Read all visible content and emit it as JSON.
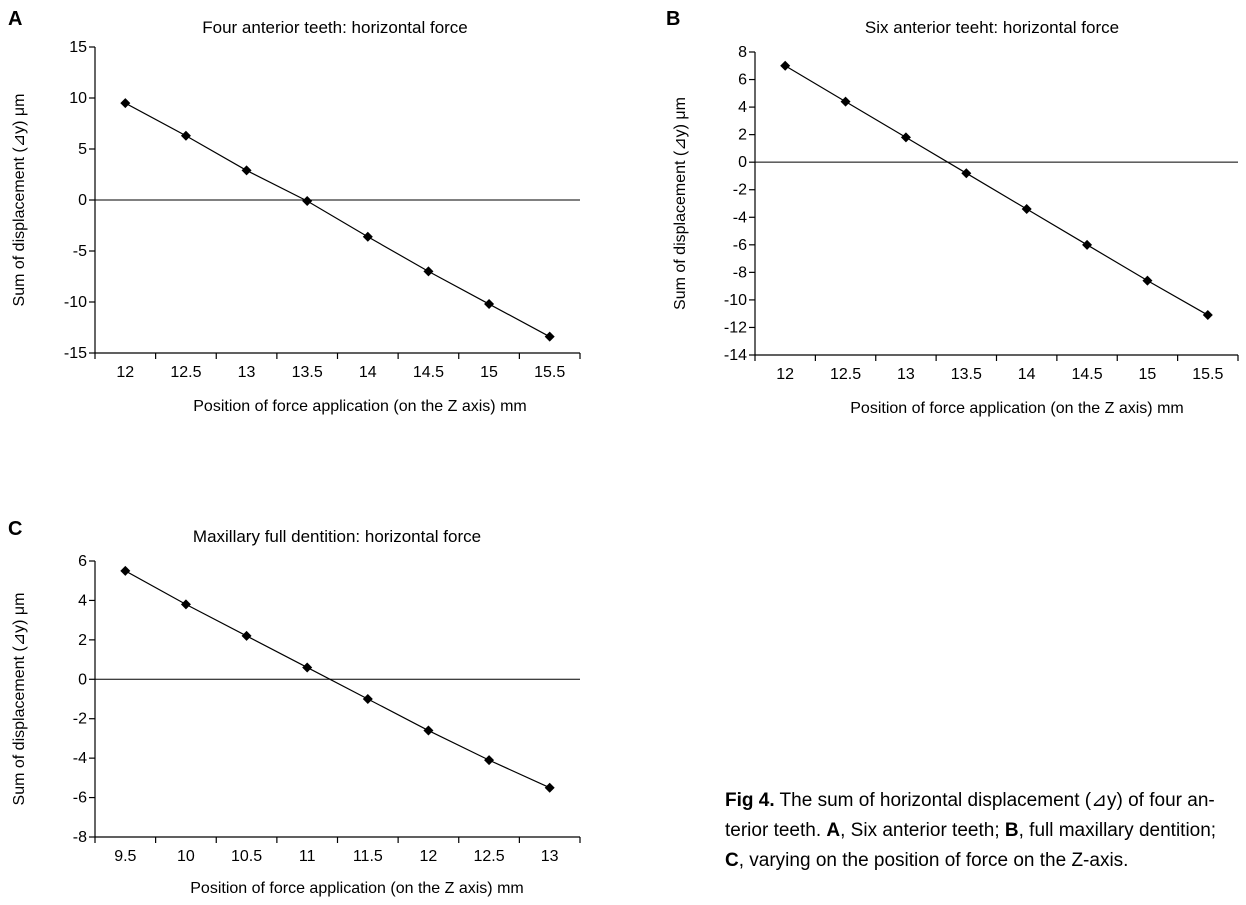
{
  "figure": {
    "caption": {
      "label": "Fig 4.",
      "line1": " The sum of horizontal displacement (⊿y) of four an-",
      "line2_pre": "terior teeth. ",
      "line2_a": "A",
      "line2_mid": ", Six anterior teeth; ",
      "line2_b": "B",
      "line2_post": ", full maxillary dentition;",
      "line3_c": "C",
      "line3_post": ", varying on the position of force on the Z-axis."
    }
  },
  "chart_data": [
    {
      "type": "line",
      "panel": "A",
      "title": "Four anterior teeth: horizontal force",
      "xlabel": "Position of force application (on the Z axis) mm",
      "ylabel": "Sum of displacement (⊿y) μm",
      "x": [
        "12",
        "12.5",
        "13",
        "13.5",
        "14",
        "14.5",
        "15",
        "15.5"
      ],
      "y": [
        9.5,
        6.3,
        2.9,
        -0.1,
        -3.6,
        -7.0,
        -10.2,
        -13.4
      ],
      "ylim": [
        -15,
        15
      ],
      "yticks": [
        15,
        10,
        5,
        0,
        -5,
        -10,
        -15
      ],
      "zero_line": true,
      "marker": "diamond"
    },
    {
      "type": "line",
      "panel": "B",
      "title": "Six anterior teeht: horizontal force",
      "xlabel": "Position of force application (on the Z axis) mm",
      "ylabel": "Sum of displacement (⊿y) μm",
      "x": [
        "12",
        "12.5",
        "13",
        "13.5",
        "14",
        "14.5",
        "15",
        "15.5"
      ],
      "y": [
        7.0,
        4.4,
        1.8,
        -0.8,
        -3.4,
        -6.0,
        -8.6,
        -11.1
      ],
      "ylim": [
        -14,
        8
      ],
      "yticks": [
        8,
        6,
        4,
        2,
        0,
        -2,
        -4,
        -6,
        -8,
        -10,
        -12,
        -14
      ],
      "zero_line": true,
      "marker": "diamond"
    },
    {
      "type": "line",
      "panel": "C",
      "title": "Maxillary full dentition: horizontal force",
      "xlabel": "Position of force application (on the Z axis) mm",
      "ylabel": "Sum of displacement (⊿y) μm",
      "x": [
        "9.5",
        "10",
        "10.5",
        "11",
        "11.5",
        "12",
        "12.5",
        "13"
      ],
      "y": [
        5.5,
        3.8,
        2.2,
        0.6,
        -1.0,
        -2.6,
        -4.1,
        -5.5
      ],
      "ylim": [
        -8,
        6
      ],
      "yticks": [
        6,
        4,
        2,
        0,
        -2,
        -4,
        -6,
        -8
      ],
      "zero_line": true,
      "marker": "diamond"
    }
  ]
}
